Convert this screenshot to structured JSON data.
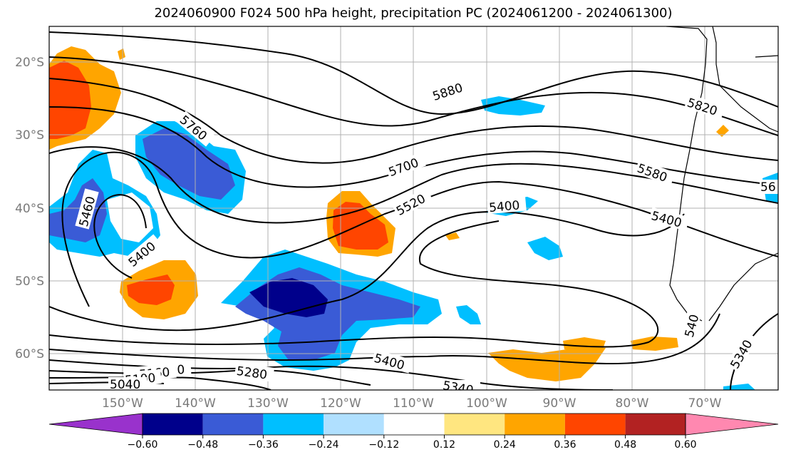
{
  "title": "2024060900 F024 500 hPa height, precipitation PC (2024061200 - 2024061300)",
  "map": {
    "lat_labels": [
      "20°S",
      "30°S",
      "40°S",
      "50°S",
      "60°S"
    ],
    "lon_labels": [
      "150°W",
      "140°W",
      "130°W",
      "120°W",
      "110°W",
      "100°W",
      "90°W",
      "80°W",
      "70°W"
    ],
    "height_contour_labels": [
      {
        "text": "5880"
      },
      {
        "text": "5820"
      },
      {
        "text": "5760"
      },
      {
        "text": "5700"
      },
      {
        "text": "5580"
      },
      {
        "text": "5520"
      },
      {
        "text": "5460"
      },
      {
        "text": "5400"
      },
      {
        "text": "5400"
      },
      {
        "text": "5400"
      },
      {
        "text": "5400"
      },
      {
        "text": "5340"
      },
      {
        "text": "5340"
      },
      {
        "text": "5280"
      },
      {
        "text": "5220"
      },
      {
        "text": "5160"
      },
      {
        "text": "5100"
      },
      {
        "text": "5040"
      },
      {
        "text": "540"
      },
      {
        "text": "56"
      }
    ]
  },
  "colorbar": {
    "tick_labels": [
      "−0.60",
      "−0.48",
      "−0.36",
      "−0.24",
      "−0.12",
      "0.12",
      "0.24",
      "0.36",
      "0.48",
      "0.60"
    ],
    "colors": {
      "under": "#9932cc",
      "bins": [
        "#00008b",
        "#3a5bd6",
        "#00bfff",
        "#b0e0ff",
        "#ffffff",
        "#ffe680",
        "#ffa500",
        "#ff4500",
        "#b22222"
      ],
      "over": "#ff88b0"
    }
  }
}
